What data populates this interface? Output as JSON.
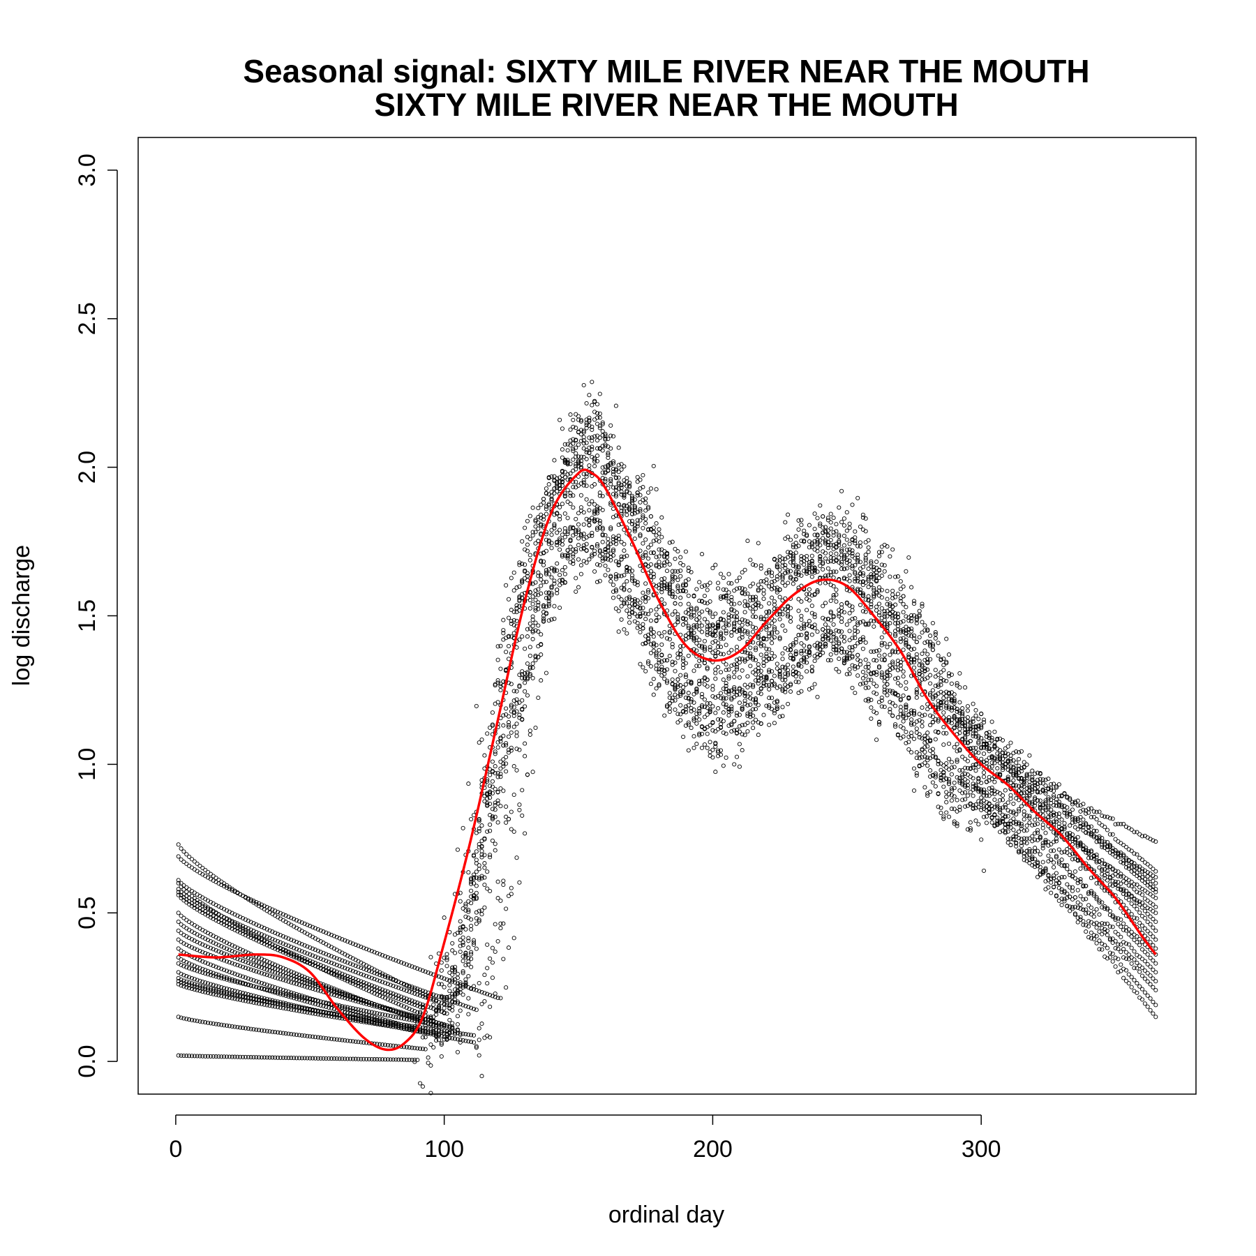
{
  "chart_data": {
    "type": "scatter",
    "title": "Seasonal signal: SIXTY MILE RIVER NEAR THE MOUTH",
    "subtitle": "SIXTY MILE RIVER NEAR THE MOUTH",
    "xlabel": "ordinal day",
    "ylabel": "log discharge",
    "xlim": [
      -14,
      380
    ],
    "ylim": [
      -0.11,
      3.11
    ],
    "x_ticks": [
      0,
      100,
      200,
      300
    ],
    "x_tick_labels": [
      "0",
      "100",
      "200",
      "300"
    ],
    "y_ticks": [
      0.0,
      0.5,
      1.0,
      1.5,
      2.0,
      2.5,
      3.0
    ],
    "y_tick_labels": [
      "0.0",
      "0.5",
      "1.0",
      "1.5",
      "2.0",
      "2.5",
      "3.0"
    ],
    "grid": false,
    "series": [
      {
        "kind": "points",
        "marker": "open-circle",
        "color": "#000000",
        "description": "daily log discharge observations for many years",
        "winter_start_values_day1": [
          0.73,
          0.69,
          0.61,
          0.6,
          0.58,
          0.57,
          0.56,
          0.5,
          0.47,
          0.44,
          0.41,
          0.38,
          0.35,
          0.33,
          0.3,
          0.28,
          0.27,
          0.26,
          0.15,
          0.02
        ],
        "winter_end_values_day365": [
          0.74,
          0.64,
          0.62,
          0.6,
          0.58,
          0.57,
          0.55,
          0.52,
          0.5,
          0.47,
          0.44,
          0.41,
          0.38,
          0.36,
          0.33,
          0.3,
          0.27,
          0.24,
          0.19,
          0.15,
          0.02
        ]
      },
      {
        "kind": "line",
        "color": "#ff0000",
        "description": "smoothed seasonal signal",
        "x": [
          1,
          15,
          30,
          40,
          50,
          60,
          70,
          78,
          85,
          92,
          100,
          110,
          120,
          130,
          140,
          150,
          155,
          160,
          170,
          180,
          190,
          200,
          210,
          220,
          230,
          240,
          250,
          260,
          270,
          280,
          290,
          300,
          310,
          320,
          330,
          340,
          350,
          360,
          365
        ],
        "y": [
          0.36,
          0.35,
          0.36,
          0.35,
          0.3,
          0.18,
          0.08,
          0.04,
          0.06,
          0.15,
          0.4,
          0.75,
          1.15,
          1.55,
          1.85,
          1.98,
          1.98,
          1.93,
          1.75,
          1.55,
          1.4,
          1.35,
          1.38,
          1.48,
          1.57,
          1.62,
          1.6,
          1.5,
          1.38,
          1.22,
          1.1,
          1.0,
          0.93,
          0.84,
          0.76,
          0.65,
          0.55,
          0.42,
          0.36
        ]
      }
    ]
  }
}
